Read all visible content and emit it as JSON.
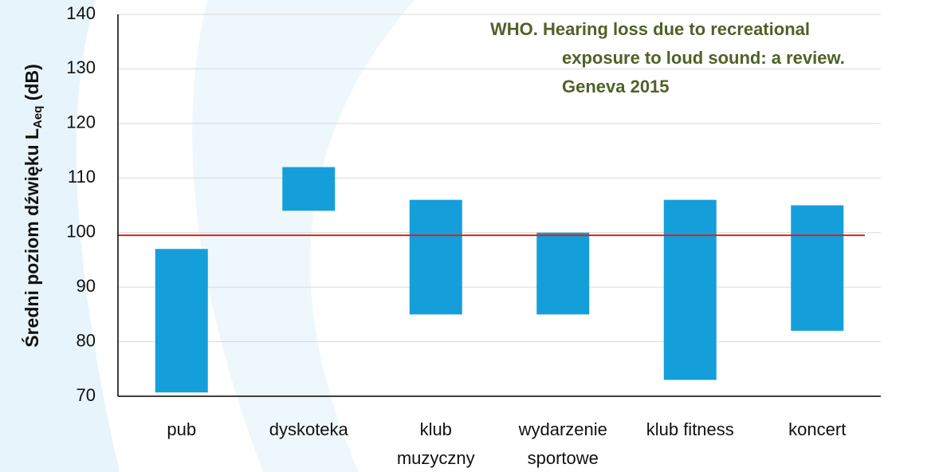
{
  "chart_data": {
    "type": "floating-bar",
    "annotation": [
      "WHO. Hearing loss due to recreational",
      "exposure to loud sound:  a review.",
      "Geneva 2015"
    ],
    "y_label": {
      "main": "Średni poziom dźwięku L",
      "sub": "Aeq",
      "end": " (dB)"
    },
    "categories": [
      [
        "pub"
      ],
      [
        "dyskoteka"
      ],
      [
        "klub",
        "muzyczny"
      ],
      [
        "wydarzenie",
        "sportowe"
      ],
      [
        "klub fitness"
      ],
      [
        "koncert"
      ]
    ],
    "low": [
      70.7,
      104,
      85,
      85,
      73,
      82
    ],
    "high": [
      97,
      112,
      106,
      100,
      106,
      105
    ],
    "color": "#149fdb",
    "reference_line": {
      "value": 99.5,
      "color": "#e0201b"
    },
    "ylim": [
      70,
      140
    ],
    "yticks": [
      70,
      80,
      90,
      100,
      110,
      120,
      130,
      140
    ],
    "grid": true
  }
}
